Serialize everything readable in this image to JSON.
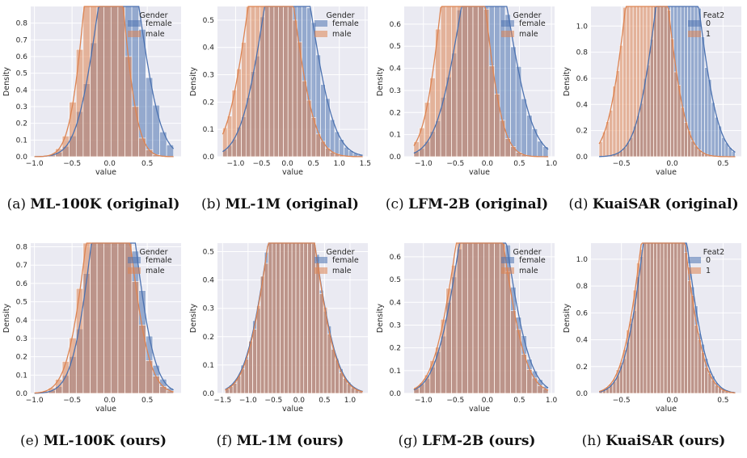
{
  "chart_data": [
    {
      "label": "(a)",
      "title": "ML-100K (original)",
      "type": "histogram-kde",
      "xlabel": "value",
      "ylabel": "Density",
      "xlim": [
        -1.05,
        0.95
      ],
      "ylim": [
        0,
        0.9
      ],
      "xticks": [
        -1.0,
        -0.5,
        0.0,
        0.5
      ],
      "yticks": [
        0.0,
        0.1,
        0.2,
        0.3,
        0.4,
        0.5,
        0.6,
        0.7,
        0.8
      ],
      "legend_title": "Gender",
      "legend_labels": [
        "female",
        "male"
      ],
      "series": [
        {
          "name": "female",
          "mean": 0.12,
          "sd": 0.28,
          "bins": 20,
          "bin_range": [
            -1.0,
            0.85
          ]
        },
        {
          "name": "male",
          "mean": -0.08,
          "sd": 0.22,
          "bins": 20,
          "bin_range": [
            -1.0,
            0.85
          ]
        }
      ]
    },
    {
      "label": "(b)",
      "title": "ML-1M (original)",
      "type": "histogram-kde",
      "xlabel": "value",
      "ylabel": "Density",
      "xlim": [
        -1.35,
        1.55
      ],
      "ylim": [
        0,
        0.55
      ],
      "xticks": [
        -1.0,
        -0.5,
        0.0,
        0.5,
        1.0,
        1.5
      ],
      "yticks": [
        0.0,
        0.1,
        0.2,
        0.3,
        0.4,
        0.5
      ],
      "legend_title": "Gender",
      "legend_labels": [
        "female",
        "male"
      ],
      "series": [
        {
          "name": "female",
          "mean": 0.0,
          "sd": 0.45,
          "bins": 30,
          "bin_range": [
            -1.25,
            1.45
          ]
        },
        {
          "name": "male",
          "mean": -0.32,
          "sd": 0.42,
          "bins": 30,
          "bin_range": [
            -1.25,
            1.45
          ]
        }
      ]
    },
    {
      "label": "(c)",
      "title": "LFM-2B (original)",
      "type": "histogram-kde",
      "xlabel": "value",
      "ylabel": "Density",
      "xlim": [
        -1.3,
        1.05
      ],
      "ylim": [
        0,
        0.68
      ],
      "xticks": [
        -1.0,
        -0.5,
        0.0,
        0.5,
        1.0
      ],
      "yticks": [
        0.0,
        0.1,
        0.2,
        0.3,
        0.4,
        0.5,
        0.6
      ],
      "legend_title": "Gender",
      "legend_labels": [
        "female",
        "male"
      ],
      "series": [
        {
          "name": "female",
          "mean": -0.05,
          "sd": 0.38,
          "bins": 25,
          "bin_range": [
            -1.15,
            0.95
          ]
        },
        {
          "name": "male",
          "mean": -0.38,
          "sd": 0.3,
          "bins": 25,
          "bin_range": [
            -1.15,
            0.95
          ]
        }
      ]
    },
    {
      "label": "(d)",
      "title": "KuaiSAR (original)",
      "type": "histogram-kde",
      "xlabel": "value",
      "ylabel": "Density",
      "xlim": [
        -0.8,
        0.68
      ],
      "ylim": [
        0,
        1.15
      ],
      "xticks": [
        -0.5,
        0.0,
        0.5
      ],
      "yticks": [
        0.0,
        0.2,
        0.4,
        0.6,
        0.8,
        1.0
      ],
      "legend_title": "Feat2",
      "legend_labels": [
        "0",
        "1"
      ],
      "series": [
        {
          "name": "0",
          "mean": 0.05,
          "sd": 0.2,
          "bins": 40,
          "bin_range": [
            -0.72,
            0.62
          ]
        },
        {
          "name": "1",
          "mean": -0.25,
          "sd": 0.19,
          "bins": 40,
          "bin_range": [
            -0.72,
            0.62
          ]
        }
      ]
    },
    {
      "label": "(e)",
      "title": "ML-100K (ours)",
      "type": "histogram-kde",
      "xlabel": "value",
      "ylabel": "Density",
      "xlim": [
        -1.05,
        0.95
      ],
      "ylim": [
        0,
        0.82
      ],
      "xticks": [
        -1.0,
        -0.5,
        0.0,
        0.5
      ],
      "yticks": [
        0.0,
        0.1,
        0.2,
        0.3,
        0.4,
        0.5,
        0.6,
        0.7,
        0.8
      ],
      "legend_title": "Gender",
      "legend_labels": [
        "female",
        "male"
      ],
      "series": [
        {
          "name": "female",
          "mean": 0.05,
          "sd": 0.27,
          "bins": 20,
          "bin_range": [
            -1.0,
            0.85
          ]
        },
        {
          "name": "male",
          "mean": -0.02,
          "sd": 0.27,
          "bins": 20,
          "bin_range": [
            -1.0,
            0.85
          ]
        }
      ]
    },
    {
      "label": "(f)",
      "title": "ML-1M (ours)",
      "type": "histogram-kde",
      "xlabel": "value",
      "ylabel": "Density",
      "xlim": [
        -1.6,
        1.35
      ],
      "ylim": [
        0,
        0.53
      ],
      "xticks": [
        -1.5,
        -1.0,
        -0.5,
        0.0,
        0.5,
        1.0
      ],
      "yticks": [
        0.0,
        0.1,
        0.2,
        0.3,
        0.4,
        0.5
      ],
      "legend_title": "Gender",
      "legend_labels": [
        "female",
        "male"
      ],
      "series": [
        {
          "name": "female",
          "mean": -0.15,
          "sd": 0.45,
          "bins": 35,
          "bin_range": [
            -1.45,
            1.25
          ]
        },
        {
          "name": "male",
          "mean": -0.15,
          "sd": 0.44,
          "bins": 35,
          "bin_range": [
            -1.45,
            1.25
          ]
        }
      ]
    },
    {
      "label": "(g)",
      "title": "LFM-2B (ours)",
      "type": "histogram-kde",
      "xlabel": "value",
      "ylabel": "Density",
      "xlim": [
        -1.3,
        1.05
      ],
      "ylim": [
        0,
        0.66
      ],
      "xticks": [
        -1.0,
        -0.5,
        0.0,
        0.5,
        1.0
      ],
      "yticks": [
        0.0,
        0.1,
        0.2,
        0.3,
        0.4,
        0.5,
        0.6
      ],
      "legend_title": "Gender",
      "legend_labels": [
        "female",
        "male"
      ],
      "series": [
        {
          "name": "female",
          "mean": -0.07,
          "sd": 0.37,
          "bins": 25,
          "bin_range": [
            -1.15,
            0.95
          ]
        },
        {
          "name": "male",
          "mean": -0.12,
          "sd": 0.36,
          "bins": 25,
          "bin_range": [
            -1.15,
            0.95
          ]
        }
      ]
    },
    {
      "label": "(h)",
      "title": "KuaiSAR (ours)",
      "type": "histogram-kde",
      "xlabel": "value",
      "ylabel": "Density",
      "xlim": [
        -0.8,
        0.68
      ],
      "ylim": [
        0,
        1.12
      ],
      "xticks": [
        -0.5,
        0.0,
        0.5
      ],
      "yticks": [
        0.0,
        0.2,
        0.4,
        0.6,
        0.8,
        1.0
      ],
      "legend_title": "Feat2",
      "legend_labels": [
        "0",
        "1"
      ],
      "series": [
        {
          "name": "0",
          "mean": -0.07,
          "sd": 0.2,
          "bins": 40,
          "bin_range": [
            -0.72,
            0.62
          ]
        },
        {
          "name": "1",
          "mean": -0.09,
          "sd": 0.2,
          "bins": 40,
          "bin_range": [
            -0.72,
            0.62
          ]
        }
      ]
    }
  ],
  "colors": {
    "series0": "#4c72b0",
    "series1": "#dd8452",
    "panel_bg": "#eaeaf2",
    "grid": "#ffffff",
    "text": "#262626"
  }
}
